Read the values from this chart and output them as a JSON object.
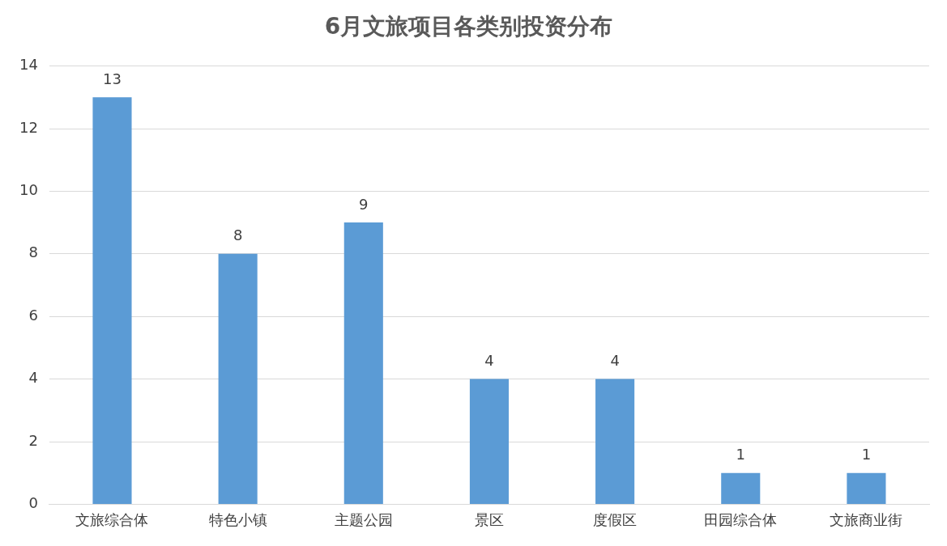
{
  "chart_data": {
    "type": "bar",
    "title": "6月文旅项目各类别投资分布",
    "categories": [
      "文旅综合体",
      "特色小镇",
      "主题公园",
      "景区",
      "度假区",
      "田园综合体",
      "文旅商业街"
    ],
    "values": [
      13,
      8,
      9,
      4,
      4,
      1,
      1
    ],
    "color": "#5b9bd5",
    "ylim": [
      0,
      14
    ],
    "yticks": [
      0,
      2,
      4,
      6,
      8,
      10,
      12,
      14
    ],
    "grid": "y",
    "data_labels": true
  }
}
